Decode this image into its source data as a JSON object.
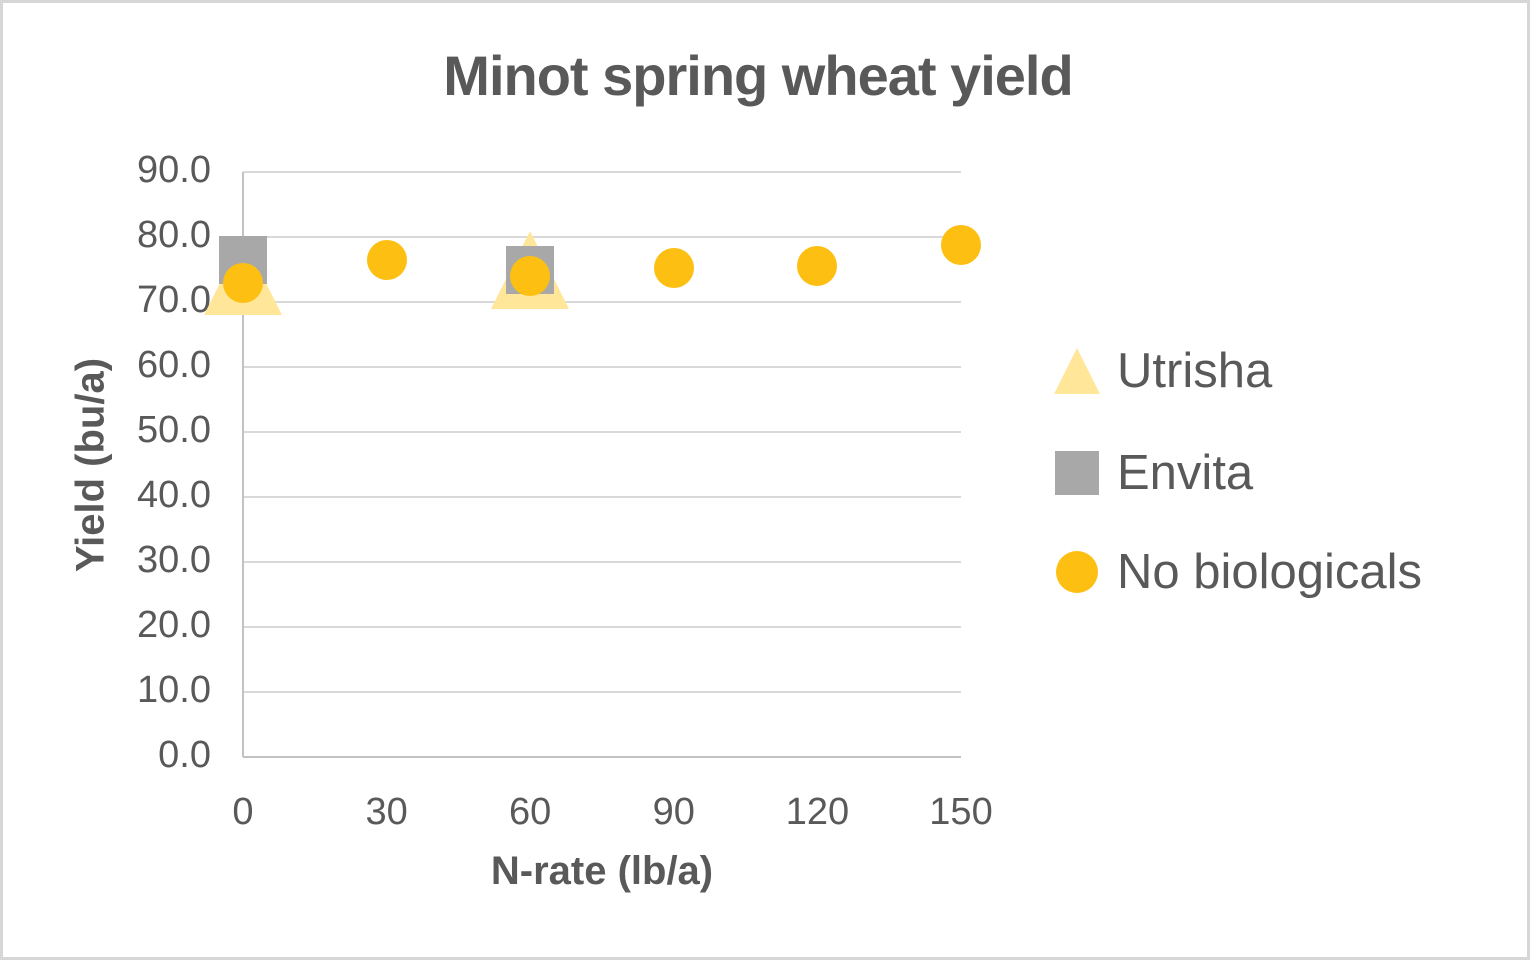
{
  "frame": {
    "background": "#ffffff",
    "border_color": "#d6d6d6"
  },
  "title": "Minot spring wheat yield",
  "colors": {
    "text": "#595959",
    "gridline": "#d9d9d9",
    "axis_line": "#c2c2c2",
    "utrisha": "#ffe699",
    "envita": "#a8a8a8",
    "no_biologicals": "#fdbf12"
  },
  "chart_data": {
    "type": "scatter",
    "title": "Minot spring wheat yield",
    "xlabel": "N-rate (lb/a)",
    "ylabel": "Yield (bu/a)",
    "xlim": [
      0,
      150
    ],
    "ylim": [
      0,
      90
    ],
    "x_ticks": [
      "0",
      "30",
      "60",
      "90",
      "120",
      "150"
    ],
    "y_ticks": [
      "0.0",
      "10.0",
      "20.0",
      "30.0",
      "40.0",
      "50.0",
      "60.0",
      "70.0",
      "80.0",
      "90.0"
    ],
    "grid": "horizontal",
    "legend_position": "right",
    "series": [
      {
        "name": "Utrisha",
        "marker": "triangle",
        "color": "#ffe699",
        "marker_size": 78,
        "points": [
          {
            "x": 0,
            "y": 74.0
          },
          {
            "x": 60,
            "y": 75.0
          }
        ]
      },
      {
        "name": "Envita",
        "marker": "square",
        "color": "#a8a8a8",
        "marker_size": 48,
        "points": [
          {
            "x": 0,
            "y": 76.5
          },
          {
            "x": 60,
            "y": 75.0
          }
        ]
      },
      {
        "name": "No biologicals",
        "marker": "circle",
        "color": "#fdbf12",
        "marker_size": 40,
        "points": [
          {
            "x": 0,
            "y": 73.0
          },
          {
            "x": 30,
            "y": 76.5
          },
          {
            "x": 60,
            "y": 74.0
          },
          {
            "x": 90,
            "y": 75.3
          },
          {
            "x": 120,
            "y": 75.5
          },
          {
            "x": 150,
            "y": 78.8
          }
        ]
      }
    ],
    "legend_items": [
      {
        "label": "Utrisha"
      },
      {
        "label": "Envita"
      },
      {
        "label": "No biologicals"
      }
    ]
  }
}
